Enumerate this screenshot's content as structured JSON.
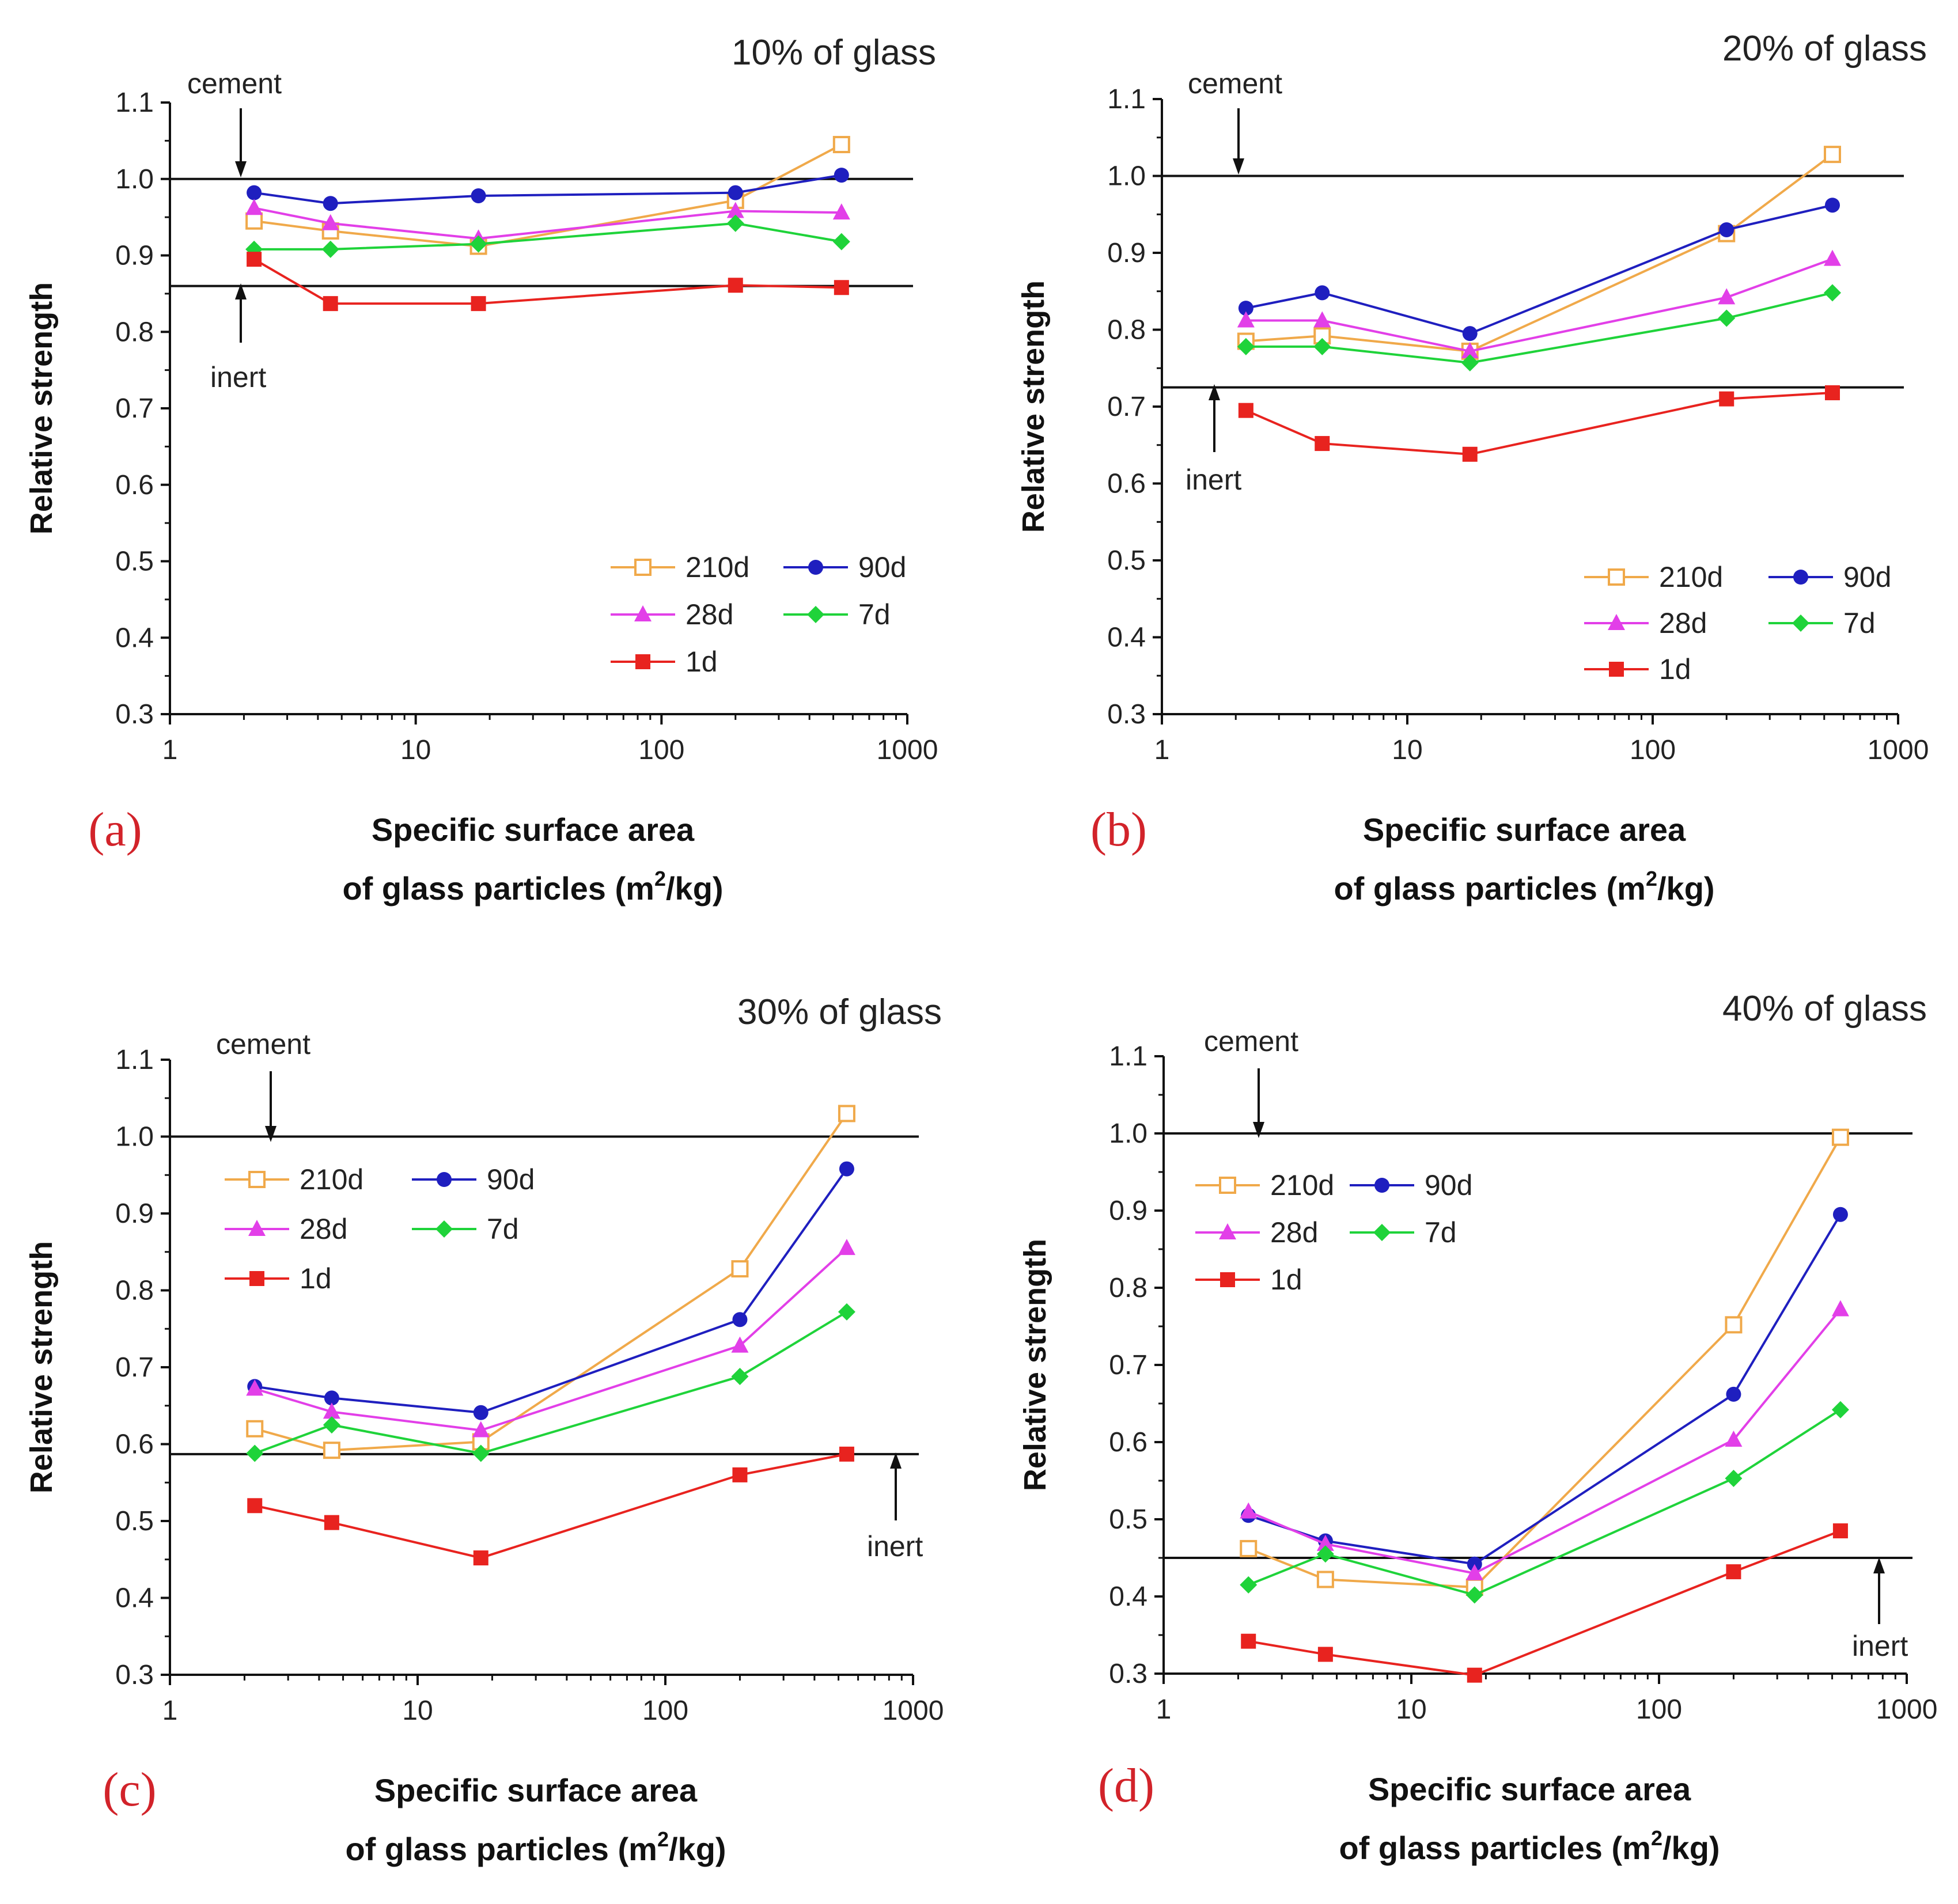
{
  "figure": {
    "panels": [
      {
        "letter": "(a)",
        "title": "10% of glass"
      },
      {
        "letter": "(b)",
        "title": "20% of glass"
      },
      {
        "letter": "(c)",
        "title": "30% of glass"
      },
      {
        "letter": "(d)",
        "title": "40% of glass"
      }
    ]
  },
  "chart_data": [
    {
      "type": "line",
      "title": "10% of glass",
      "panel_label": "(a)",
      "xlabel": "Specific surface area",
      "xlabel_line2_prefix": "of glass particles (m",
      "xlabel_sup": "2",
      "xlabel_line2_suffix": "/kg)",
      "ylabel": "Relative strength",
      "xscale": "log",
      "xlim": [
        1,
        1000
      ],
      "ylim": [
        0.3,
        1.1
      ],
      "xticks": [
        1,
        10,
        100,
        1000
      ],
      "xtick_labels": [
        "1",
        "10",
        "100",
        "1000"
      ],
      "yticks": [
        0.3,
        0.4,
        0.5,
        0.6,
        0.7,
        0.8,
        0.9,
        1.0,
        1.1
      ],
      "ytick_labels": [
        "0.3",
        "0.4",
        "0.5",
        "0.6",
        "0.7",
        "0.8",
        "0.9",
        "1.0",
        "1.1"
      ],
      "x": [
        2.2,
        4.5,
        18,
        200,
        540
      ],
      "series": [
        {
          "name": "210d",
          "color": "#f0a94a",
          "marker": "square-open",
          "values": [
            0.945,
            0.932,
            0.912,
            0.972,
            1.045
          ]
        },
        {
          "name": "90d",
          "color": "#1f1fbf",
          "marker": "circle",
          "values": [
            0.982,
            0.968,
            0.978,
            0.982,
            1.005
          ]
        },
        {
          "name": "28d",
          "color": "#e23fe8",
          "marker": "triangle",
          "values": [
            0.962,
            0.942,
            0.922,
            0.958,
            0.956
          ]
        },
        {
          "name": "7d",
          "color": "#1fd33a",
          "marker": "diamond",
          "values": [
            0.908,
            0.908,
            0.915,
            0.942,
            0.918
          ]
        },
        {
          "name": "1d",
          "color": "#e8231f",
          "marker": "square",
          "values": [
            0.895,
            0.837,
            0.837,
            0.861,
            0.858
          ]
        }
      ],
      "reference_lines": [
        {
          "label": "cement",
          "value": 1.0
        },
        {
          "label": "inert",
          "value": 0.86
        }
      ],
      "legend_position": "bottom-right"
    },
    {
      "type": "line",
      "title": "20% of glass",
      "panel_label": "(b)",
      "xlabel": "Specific surface area",
      "xlabel_line2_prefix": "of glass particles (m",
      "xlabel_sup": "2",
      "xlabel_line2_suffix": "/kg)",
      "ylabel": "Relative strength",
      "xscale": "log",
      "xlim": [
        1,
        1000
      ],
      "ylim": [
        0.3,
        1.1
      ],
      "xticks": [
        1,
        10,
        100,
        1000
      ],
      "xtick_labels": [
        "1",
        "10",
        "100",
        "1000"
      ],
      "yticks": [
        0.3,
        0.4,
        0.5,
        0.6,
        0.7,
        0.8,
        0.9,
        1.0,
        1.1
      ],
      "ytick_labels": [
        "0.3",
        "0.4",
        "0.5",
        "0.6",
        "0.7",
        "0.8",
        "0.9",
        "1.0",
        "1.1"
      ],
      "x": [
        2.2,
        4.5,
        18,
        200,
        540
      ],
      "series": [
        {
          "name": "210d",
          "color": "#f0a94a",
          "marker": "square-open",
          "values": [
            0.785,
            0.792,
            0.772,
            0.925,
            1.028
          ]
        },
        {
          "name": "90d",
          "color": "#1f1fbf",
          "marker": "circle",
          "values": [
            0.828,
            0.848,
            0.795,
            0.93,
            0.962
          ]
        },
        {
          "name": "28d",
          "color": "#e23fe8",
          "marker": "triangle",
          "values": [
            0.812,
            0.812,
            0.772,
            0.842,
            0.892
          ]
        },
        {
          "name": "7d",
          "color": "#1fd33a",
          "marker": "diamond",
          "values": [
            0.778,
            0.778,
            0.757,
            0.815,
            0.848
          ]
        },
        {
          "name": "1d",
          "color": "#e8231f",
          "marker": "square",
          "values": [
            0.695,
            0.652,
            0.638,
            0.71,
            0.718
          ]
        }
      ],
      "reference_lines": [
        {
          "label": "cement",
          "value": 1.0
        },
        {
          "label": "inert",
          "value": 0.725
        }
      ],
      "legend_position": "bottom-right"
    },
    {
      "type": "line",
      "title": "30% of glass",
      "panel_label": "(c)",
      "xlabel": "Specific surface area",
      "xlabel_line2_prefix": "of glass particles (m",
      "xlabel_sup": "2",
      "xlabel_line2_suffix": "/kg)",
      "ylabel": "Relative strength",
      "xscale": "log",
      "xlim": [
        1,
        1000
      ],
      "ylim": [
        0.3,
        1.1
      ],
      "xticks": [
        1,
        10,
        100,
        1000
      ],
      "xtick_labels": [
        "1",
        "10",
        "100",
        "1000"
      ],
      "yticks": [
        0.3,
        0.4,
        0.5,
        0.6,
        0.7,
        0.8,
        0.9,
        1.0,
        1.1
      ],
      "ytick_labels": [
        "0.3",
        "0.4",
        "0.5",
        "0.6",
        "0.7",
        "0.8",
        "0.9",
        "1.0",
        "1.1"
      ],
      "x": [
        2.2,
        4.5,
        18,
        200,
        540
      ],
      "series": [
        {
          "name": "210d",
          "color": "#f0a94a",
          "marker": "square-open",
          "values": [
            0.62,
            0.592,
            0.603,
            0.828,
            1.03
          ]
        },
        {
          "name": "90d",
          "color": "#1f1fbf",
          "marker": "circle",
          "values": [
            0.675,
            0.66,
            0.641,
            0.762,
            0.958
          ]
        },
        {
          "name": "28d",
          "color": "#e23fe8",
          "marker": "triangle",
          "values": [
            0.672,
            0.642,
            0.618,
            0.728,
            0.855
          ]
        },
        {
          "name": "7d",
          "color": "#1fd33a",
          "marker": "diamond",
          "values": [
            0.588,
            0.625,
            0.588,
            0.688,
            0.772
          ]
        },
        {
          "name": "1d",
          "color": "#e8231f",
          "marker": "square",
          "values": [
            0.52,
            0.498,
            0.452,
            0.56,
            0.587
          ]
        }
      ],
      "reference_lines": [
        {
          "label": "cement",
          "value": 1.0
        },
        {
          "label": "inert",
          "value": 0.587
        }
      ],
      "legend_position": "top-left"
    },
    {
      "type": "line",
      "title": "40% of glass",
      "panel_label": "(d)",
      "xlabel": "Specific surface area",
      "xlabel_line2_prefix": "of glass particles (m",
      "xlabel_sup": "2",
      "xlabel_line2_suffix": "/kg)",
      "ylabel": "Relative strength",
      "xscale": "log",
      "xlim": [
        1,
        1000
      ],
      "ylim": [
        0.3,
        1.1
      ],
      "xticks": [
        1,
        10,
        100,
        1000
      ],
      "xtick_labels": [
        "1",
        "10",
        "100",
        "1000"
      ],
      "yticks": [
        0.3,
        0.4,
        0.5,
        0.6,
        0.7,
        0.8,
        0.9,
        1.0,
        1.1
      ],
      "ytick_labels": [
        "0.3",
        "0.4",
        "0.5",
        "0.6",
        "0.7",
        "0.8",
        "0.9",
        "1.0",
        "1.1"
      ],
      "x": [
        2.2,
        4.5,
        18,
        200,
        540
      ],
      "series": [
        {
          "name": "210d",
          "color": "#f0a94a",
          "marker": "square-open",
          "values": [
            0.462,
            0.422,
            0.412,
            0.752,
            0.995
          ]
        },
        {
          "name": "90d",
          "color": "#1f1fbf",
          "marker": "circle",
          "values": [
            0.505,
            0.472,
            0.442,
            0.662,
            0.895
          ]
        },
        {
          "name": "28d",
          "color": "#e23fe8",
          "marker": "triangle",
          "values": [
            0.51,
            0.468,
            0.43,
            0.603,
            0.772
          ]
        },
        {
          "name": "7d",
          "color": "#1fd33a",
          "marker": "diamond",
          "values": [
            0.415,
            0.455,
            0.402,
            0.553,
            0.642
          ]
        },
        {
          "name": "1d",
          "color": "#e8231f",
          "marker": "square",
          "values": [
            0.342,
            0.325,
            0.298,
            0.432,
            0.485
          ]
        }
      ],
      "reference_lines": [
        {
          "label": "cement",
          "value": 1.0
        },
        {
          "label": "inert",
          "value": 0.45
        }
      ],
      "legend_position": "top-left"
    }
  ]
}
